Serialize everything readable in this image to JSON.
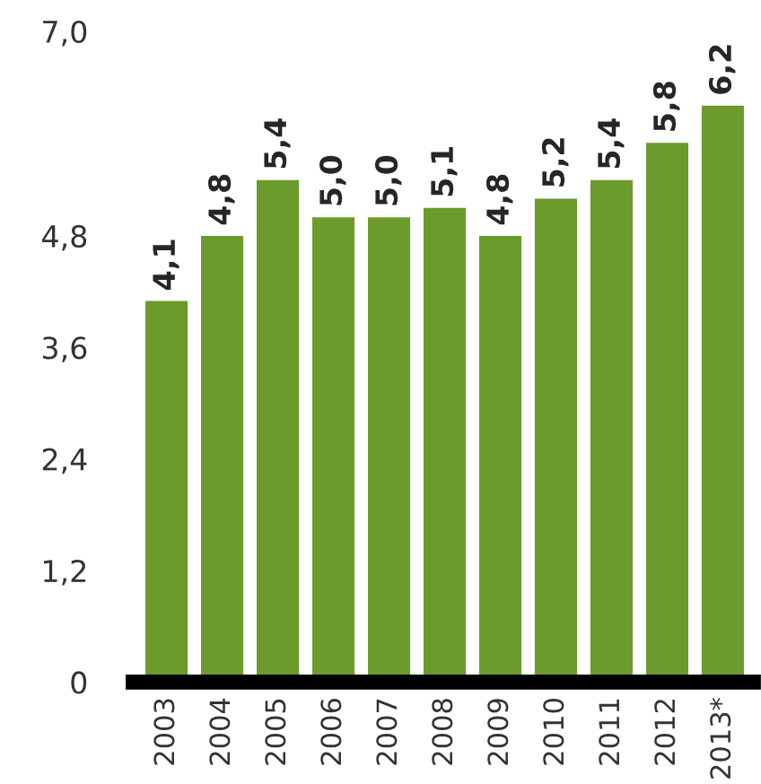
{
  "chart_data": {
    "type": "bar",
    "categories": [
      "2003",
      "2004",
      "2005",
      "2006",
      "2007",
      "2008",
      "2009",
      "2010",
      "2011",
      "2012",
      "2013*"
    ],
    "values": [
      4.1,
      4.8,
      5.4,
      5.0,
      5.0,
      5.1,
      4.8,
      5.2,
      5.4,
      5.8,
      6.2
    ],
    "value_labels": [
      "4,1",
      "4,8",
      "5,4",
      "5,0",
      "5,0",
      "5,1",
      "4,8",
      "5,2",
      "5,4",
      "5,8",
      "6,2"
    ],
    "color": "#6b9b2c",
    "ylim": [
      0,
      7.0
    ],
    "yticks": [
      0,
      {
        "value": 1.2,
        "label": "1,2"
      },
      {
        "value": 2.4,
        "label": "2,4"
      },
      {
        "value": 3.6,
        "label": "3,6"
      },
      {
        "value": 4.8,
        "label": "4,8"
      },
      {
        "value": 7.0,
        "label": "7,0"
      }
    ],
    "grid": false,
    "legend": false
  }
}
